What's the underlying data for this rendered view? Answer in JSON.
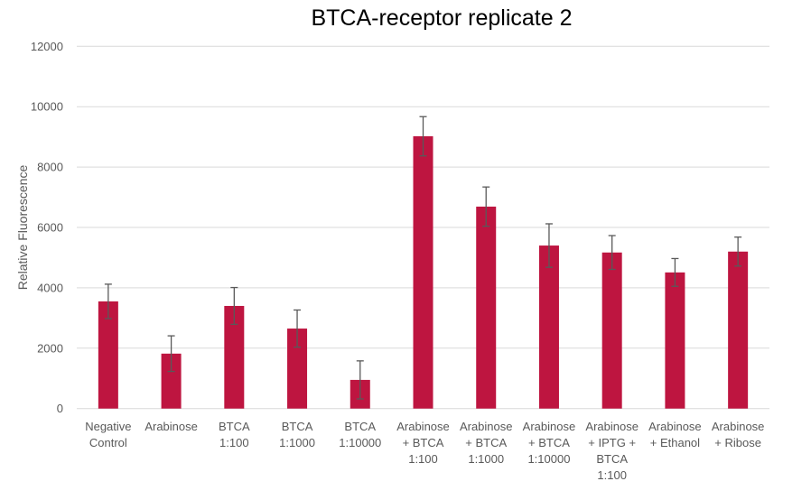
{
  "chart_data": {
    "type": "bar",
    "title": "BTCA-receptor replicate 2",
    "xlabel": "",
    "ylabel": "Relative Fluorescence",
    "ylim": [
      0,
      12000
    ],
    "yticks": [
      0,
      2000,
      4000,
      6000,
      8000,
      10000,
      12000
    ],
    "grid": true,
    "legend": null,
    "bar_color": "#BE1540",
    "error_bar_color": "#595959",
    "categories": [
      [
        "Negative",
        "Control"
      ],
      [
        "Arabinose"
      ],
      [
        "BTCA",
        "1:100"
      ],
      [
        "BTCA",
        "1:1000"
      ],
      [
        "BTCA",
        "1:10000"
      ],
      [
        "Arabinose",
        "+ BTCA",
        "1:100"
      ],
      [
        "Arabinose",
        "+ BTCA",
        "1:1000"
      ],
      [
        "Arabinose",
        "+ BTCA",
        "1:10000"
      ],
      [
        "Arabinose",
        "+ IPTG +",
        "BTCA",
        "1:100"
      ],
      [
        "Arabinose",
        "+ Ethanol"
      ],
      [
        "Arabinose",
        "+ Ribose"
      ]
    ],
    "category_names": [
      "Negative Control",
      "Arabinose",
      "BTCA 1:100",
      "BTCA 1:1000",
      "BTCA 1:10000",
      "Arabinose + BTCA 1:100",
      "Arabinose + BTCA 1:1000",
      "Arabinose + BTCA 1:10000",
      "Arabinose + IPTG + BTCA 1:100",
      "Arabinose + Ethanol",
      "Arabinose + Ribose"
    ],
    "series": [
      {
        "name": "Relative Fluorescence",
        "values": [
          3550,
          1820,
          3400,
          2650,
          950,
          9020,
          6690,
          5400,
          5170,
          4510,
          5200
        ],
        "error": [
          570,
          590,
          610,
          615,
          630,
          650,
          650,
          720,
          560,
          460,
          480
        ]
      }
    ]
  }
}
